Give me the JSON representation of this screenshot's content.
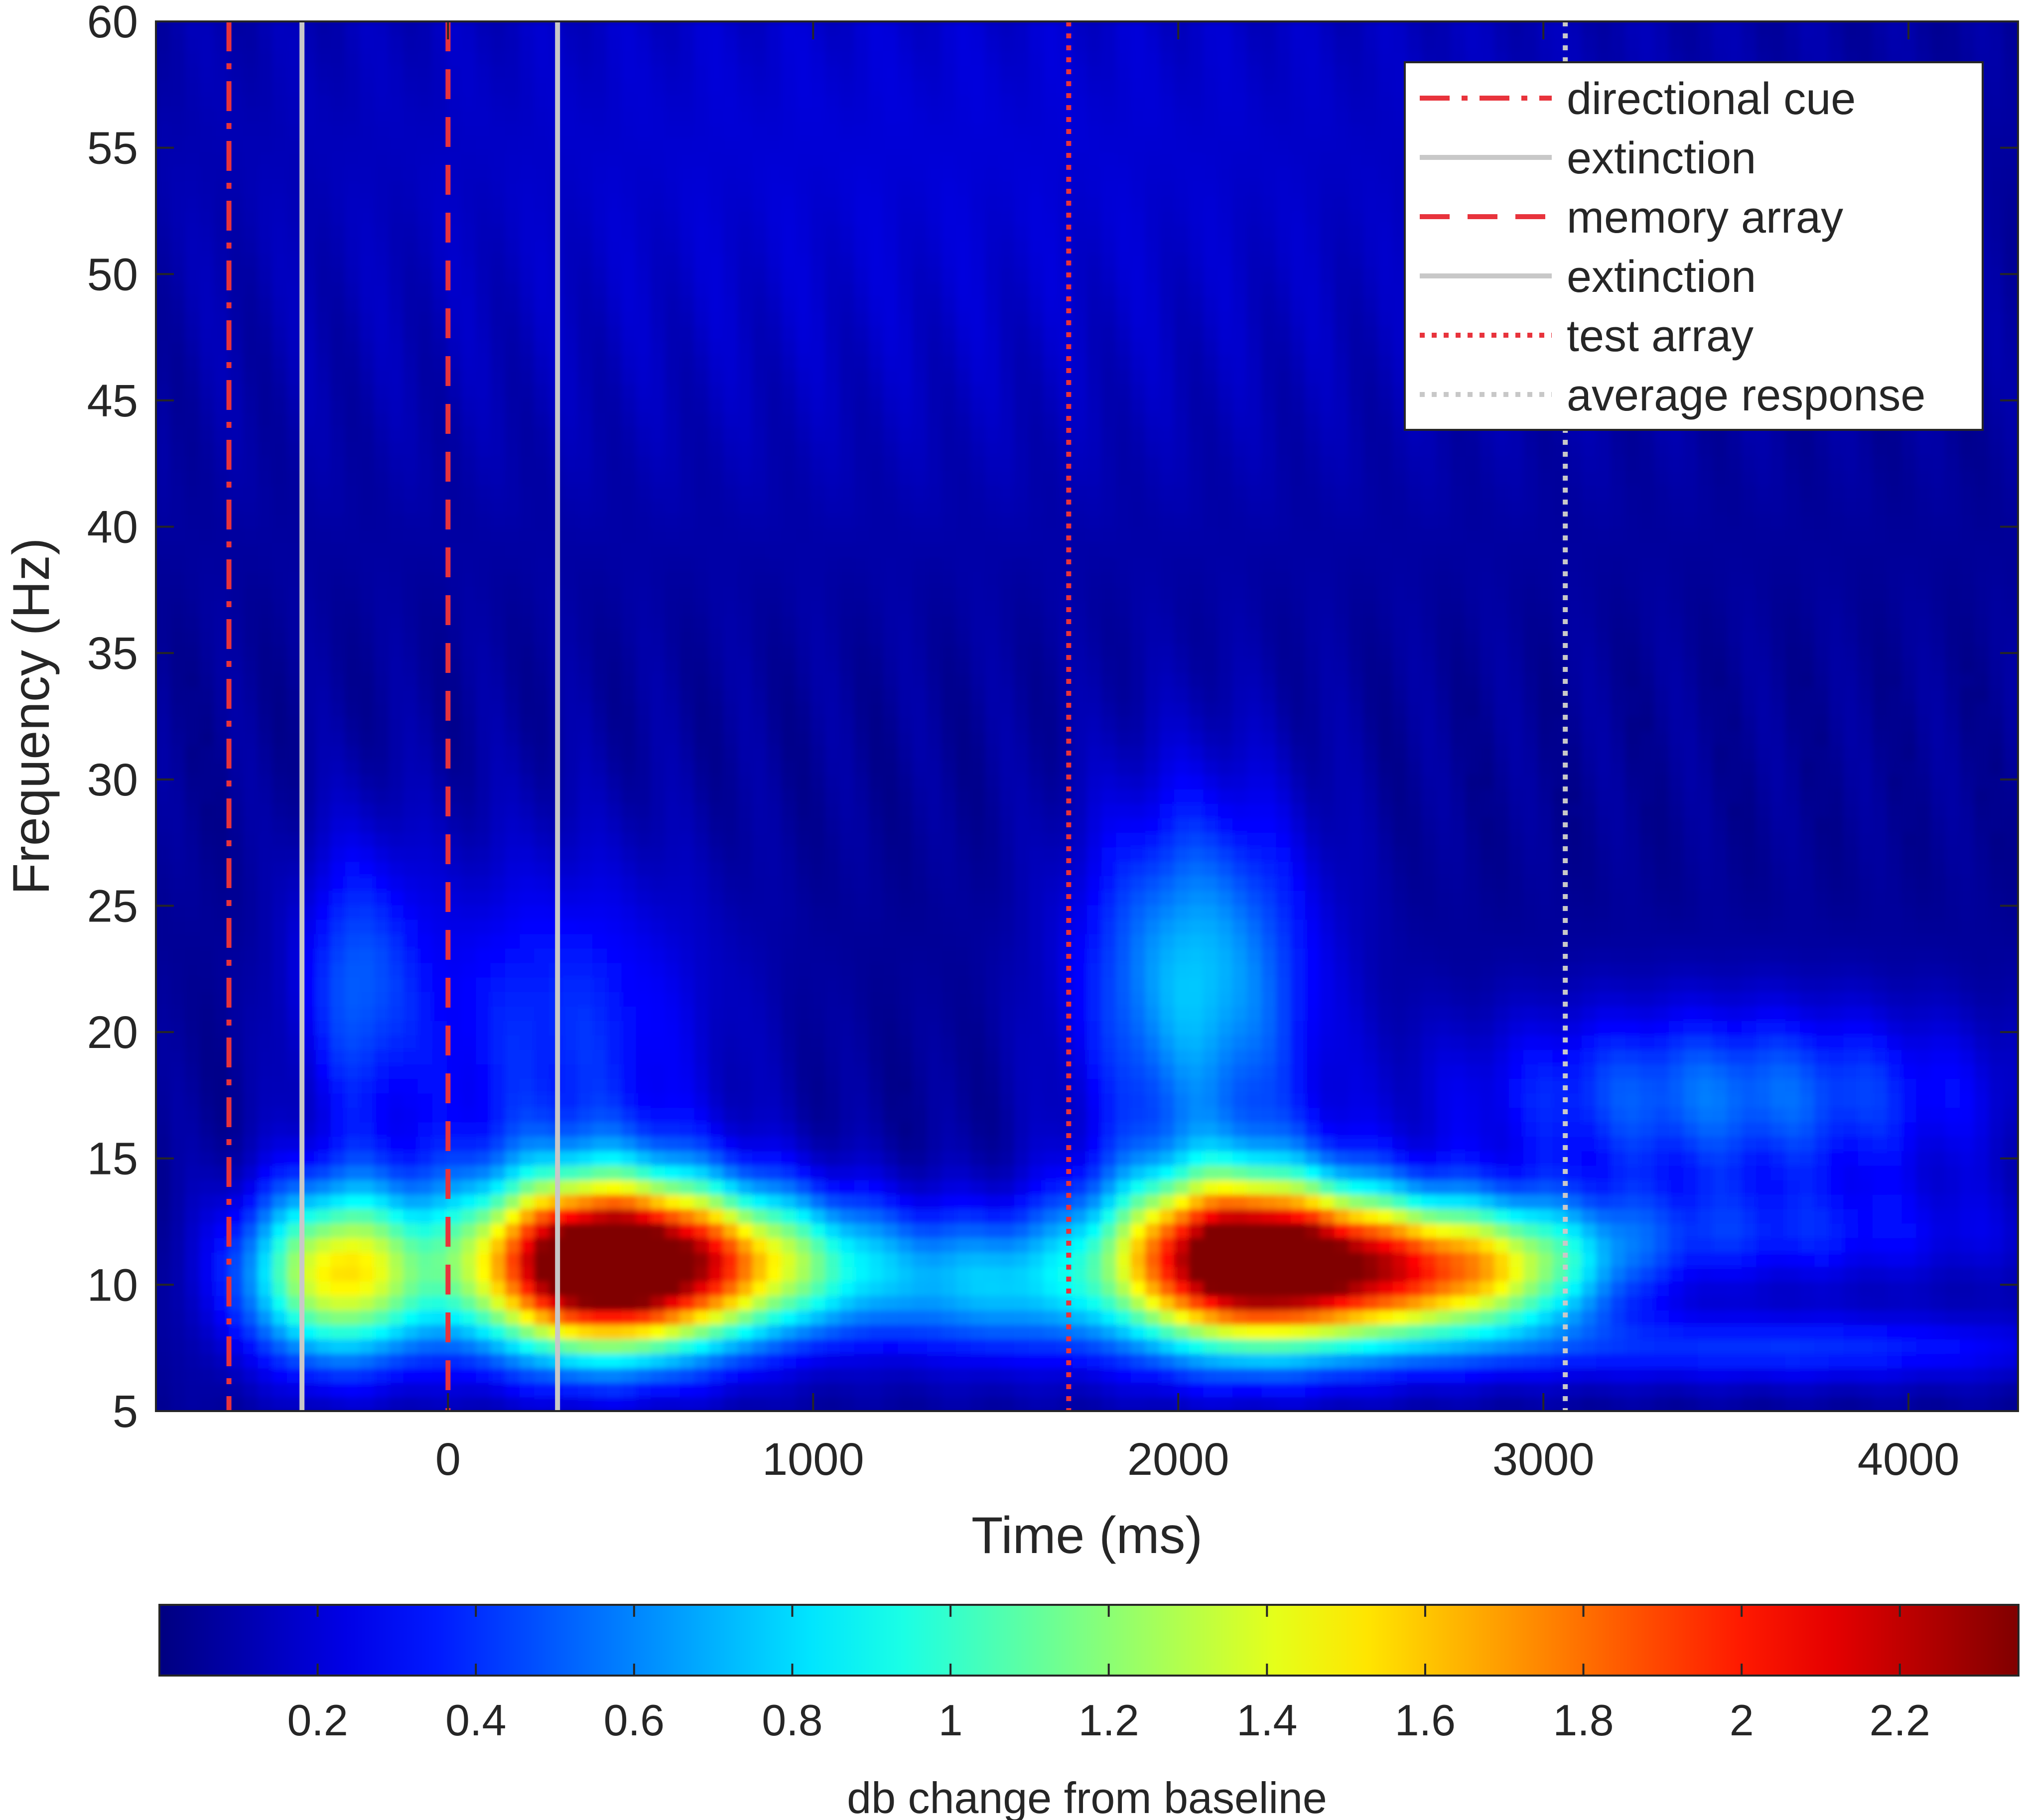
{
  "chart_data": {
    "type": "heatmap",
    "title": "",
    "xlabel": "Time (ms)",
    "ylabel": "Frequency (Hz)",
    "xlim": [
      -800,
      4300
    ],
    "ylim": [
      5,
      60
    ],
    "xticks": [
      0,
      1000,
      2000,
      3000,
      4000
    ],
    "xtick_labels": [
      "0",
      "1000",
      "2000",
      "3000",
      "4000"
    ],
    "yticks": [
      5,
      10,
      15,
      20,
      25,
      30,
      35,
      40,
      45,
      50,
      55,
      60
    ],
    "ytick_labels": [
      "5",
      "10",
      "15",
      "20",
      "25",
      "30",
      "35",
      "40",
      "45",
      "50",
      "55",
      "60"
    ],
    "colormap": "jet",
    "color_range": [
      0,
      2.35
    ],
    "colorbar": {
      "label": "db change from baseline",
      "ticks": [
        0.2,
        0.4,
        0.6,
        0.8,
        1,
        1.2,
        1.4,
        1.6,
        1.8,
        2,
        2.2
      ],
      "tick_labels": [
        "0.2",
        "0.4",
        "0.6",
        "0.8",
        "1",
        "1.2",
        "1.4",
        "1.6",
        "1.8",
        "2",
        "2.2"
      ],
      "placement": "bottom"
    },
    "blobs": [
      {
        "t": -300,
        "f": 10.5,
        "st": 180,
        "sf": 2.4,
        "v": 1.45
      },
      {
        "t": 300,
        "f": 10.8,
        "st": 220,
        "sf": 2.4,
        "v": 1.65
      },
      {
        "t": 550,
        "f": 10.8,
        "st": 220,
        "sf": 2.4,
        "v": 1.5
      },
      {
        "t": 900,
        "f": 10.8,
        "st": 250,
        "sf": 2.0,
        "v": 0.95
      },
      {
        "t": 1500,
        "f": 10.0,
        "st": 230,
        "sf": 2.0,
        "v": 0.6
      },
      {
        "t": 2150,
        "f": 11.0,
        "st": 250,
        "sf": 2.4,
        "v": 2.3
      },
      {
        "t": 2550,
        "f": 10.5,
        "st": 250,
        "sf": 2.0,
        "v": 1.3
      },
      {
        "t": 2900,
        "f": 10.5,
        "st": 220,
        "sf": 1.8,
        "v": 0.85
      },
      {
        "t": 2050,
        "f": 22.0,
        "st": 220,
        "sf": 5.0,
        "v": 0.7
      },
      {
        "t": -250,
        "f": 22.0,
        "st": 120,
        "sf": 4.0,
        "v": 0.4
      },
      {
        "t": 300,
        "f": 20.0,
        "st": 300,
        "sf": 5.0,
        "v": 0.35
      },
      {
        "t": 3500,
        "f": 17.5,
        "st": 500,
        "sf": 2.5,
        "v": 0.5
      },
      {
        "t": 3500,
        "f": 12.0,
        "st": 600,
        "sf": 1.5,
        "v": 0.3
      },
      {
        "t": 3650,
        "f": 7.5,
        "st": 600,
        "sf": 1.0,
        "v": 0.35
      },
      {
        "t": 1300,
        "f": 55.0,
        "st": 1500,
        "sf": 10.0,
        "v": 0.15
      }
    ],
    "event_lines": [
      {
        "label": "directional cue",
        "x": -600,
        "style": "dashdot",
        "color": "#e8333c"
      },
      {
        "label": "extinction",
        "x": -400,
        "style": "solid",
        "color": "#c8c8c8"
      },
      {
        "label": "memory array",
        "x": 0,
        "style": "dashed",
        "color": "#e8333c"
      },
      {
        "label": "extinction",
        "x": 300,
        "style": "solid",
        "color": "#c8c8c8"
      },
      {
        "label": "test array",
        "x": 1700,
        "style": "dotted",
        "color": "#e8333c"
      },
      {
        "label": "average response",
        "x": 3060,
        "style": "dotted",
        "color": "#c8c8c8"
      }
    ],
    "legend_position": "top-right"
  }
}
